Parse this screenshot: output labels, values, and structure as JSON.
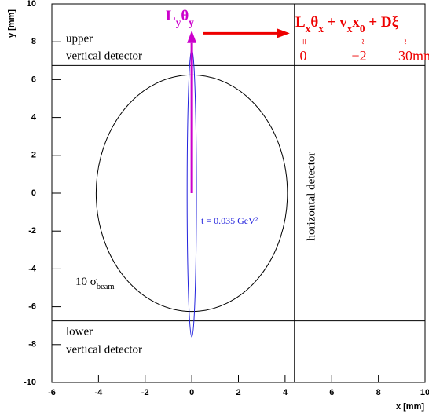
{
  "chart_data": {
    "type": "ellipse",
    "xlabel": "x [mm]",
    "ylabel": "y [mm]",
    "xlim": [
      -6,
      10
    ],
    "ylim": [
      -10,
      10
    ],
    "xticks": [
      -6,
      -4,
      -2,
      0,
      2,
      4,
      6,
      8,
      10
    ],
    "yticks": [
      -10,
      -8,
      -6,
      -4,
      -2,
      0,
      2,
      4,
      6,
      8,
      10
    ],
    "ellipses": [
      {
        "cx": 0,
        "cy": 0,
        "rx": 4.1,
        "ry": 6.25,
        "color": "#000000"
      },
      {
        "cx": 0,
        "cy": 0,
        "rx": 0.2,
        "ry": 7.6,
        "color": "#2222dd"
      }
    ],
    "hlines": [
      6.75,
      -6.75
    ],
    "vlines": [
      4.4
    ],
    "arrows": [
      {
        "from": [
          0,
          0
        ],
        "to": [
          0,
          8.6
        ],
        "color": "#cc00cc"
      },
      {
        "from": [
          0.5,
          8.45
        ],
        "to": [
          4.2,
          8.45
        ],
        "color": "#ee0000"
      }
    ],
    "annotations": {
      "upper": [
        "upper",
        "vertical detector"
      ],
      "lower": [
        "lower",
        "vertical detector"
      ],
      "horizontal": "horizontal detector",
      "t_label": "t = 0.035 GeV²",
      "sigma": [
        {
          "text": "10 σ"
        },
        {
          "text": "beam",
          "sub": true
        }
      ],
      "magenta": [
        {
          "text": "L"
        },
        {
          "text": "y",
          "sub": true
        },
        {
          "text": "θ"
        },
        {
          "text": "y",
          "sub": true
        }
      ],
      "formula": [
        {
          "text": "L"
        },
        {
          "text": "x",
          "sub": true
        },
        {
          "text": "θ"
        },
        {
          "text": "x",
          "sub": true
        },
        {
          "text": " + v"
        },
        {
          "text": "x",
          "sub": true
        },
        {
          "text": "x"
        },
        {
          "text": "0",
          "sub": true
        },
        {
          "text": " + D"
        },
        {
          "text": "ξ"
        }
      ],
      "relations": [
        "=",
        "~",
        "~"
      ],
      "formula_values": [
        "0",
        "−2",
        "30mm"
      ]
    }
  }
}
